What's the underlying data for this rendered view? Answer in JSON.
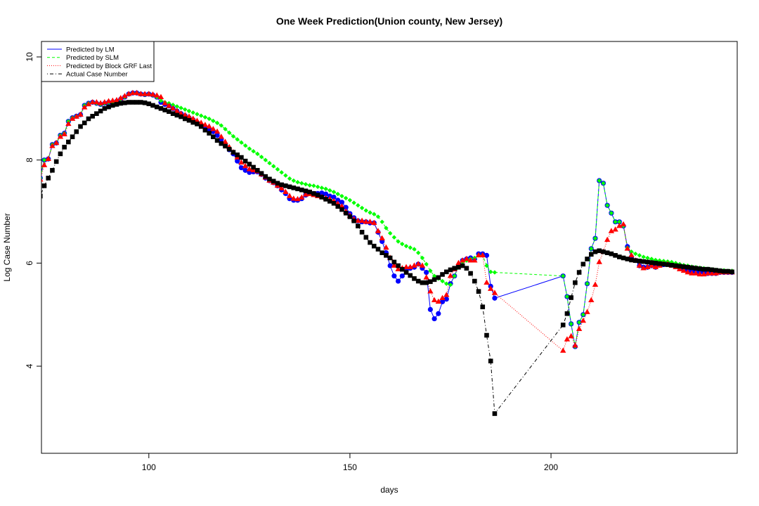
{
  "chart_data": {
    "type": "line",
    "title": "One Week Prediction(Union county, New Jersey)",
    "x_label": "days",
    "y_label": "Log Case Number",
    "xlim": [
      73.3,
      246.3
    ],
    "ylim": [
      2.31,
      10.3
    ],
    "xticks": [
      100,
      150,
      200
    ],
    "yticks": [
      4,
      6,
      8,
      10
    ],
    "legend": "top-left",
    "x": [
      73,
      74,
      75,
      76,
      77,
      78,
      79,
      80,
      81,
      82,
      83,
      84,
      85,
      86,
      87,
      88,
      89,
      90,
      91,
      92,
      93,
      94,
      95,
      96,
      97,
      98,
      99,
      100,
      101,
      102,
      103,
      104,
      105,
      106,
      107,
      108,
      109,
      110,
      111,
      112,
      113,
      114,
      115,
      116,
      117,
      118,
      119,
      120,
      121,
      122,
      123,
      124,
      125,
      126,
      127,
      128,
      129,
      130,
      131,
      132,
      133,
      134,
      135,
      136,
      137,
      138,
      139,
      140,
      141,
      142,
      143,
      144,
      145,
      146,
      147,
      148,
      149,
      150,
      151,
      152,
      153,
      154,
      155,
      156,
      157,
      158,
      159,
      160,
      161,
      162,
      163,
      164,
      165,
      166,
      167,
      168,
      169,
      170,
      171,
      172,
      173,
      174,
      175,
      176,
      177,
      178,
      179,
      180,
      181,
      182,
      183,
      184,
      185,
      186,
      203,
      204,
      205,
      206,
      207,
      208,
      209,
      210,
      211,
      212,
      213,
      214,
      215,
      216,
      217,
      218,
      219,
      220,
      221,
      222,
      223,
      224,
      225,
      226,
      227,
      228,
      229,
      230,
      231,
      232,
      233,
      234,
      235,
      236,
      237,
      238,
      239,
      240,
      241,
      242,
      243,
      244,
      245
    ],
    "series": [
      {
        "name": "Predicted by LM",
        "color": "#0000ff",
        "dash": "solid",
        "marker": "circle",
        "values": [
          7.65,
          8.0,
          8.02,
          8.3,
          8.33,
          8.48,
          8.52,
          8.75,
          8.82,
          8.85,
          8.88,
          9.06,
          9.1,
          9.12,
          9.1,
          9.08,
          9.1,
          9.12,
          9.12,
          9.14,
          9.18,
          9.22,
          9.28,
          9.3,
          9.3,
          9.28,
          9.27,
          9.28,
          9.26,
          9.22,
          9.12,
          9.08,
          9.05,
          9.0,
          8.95,
          8.9,
          8.86,
          8.82,
          8.78,
          8.73,
          8.68,
          8.62,
          8.6,
          8.55,
          8.48,
          8.4,
          8.28,
          8.2,
          8.12,
          7.98,
          7.85,
          7.8,
          7.76,
          7.77,
          7.77,
          7.72,
          7.65,
          7.6,
          7.56,
          7.5,
          7.42,
          7.35,
          7.25,
          7.22,
          7.22,
          7.25,
          7.32,
          7.36,
          7.35,
          7.35,
          7.36,
          7.34,
          7.3,
          7.28,
          7.22,
          7.18,
          7.08,
          6.96,
          6.88,
          6.82,
          6.8,
          6.8,
          6.78,
          6.78,
          6.6,
          6.42,
          6.2,
          5.95,
          5.75,
          5.65,
          5.75,
          5.85,
          5.9,
          5.92,
          5.98,
          5.9,
          5.82,
          5.1,
          4.92,
          5.02,
          5.25,
          5.3,
          5.6,
          5.75,
          5.95,
          6.05,
          6.08,
          6.1,
          6.08,
          6.18,
          6.18,
          6.15,
          5.55,
          5.32,
          5.75,
          5.35,
          4.82,
          4.38,
          4.85,
          5.0,
          5.6,
          6.28,
          6.48,
          7.6,
          7.55,
          7.12,
          6.97,
          6.8,
          6.8,
          6.72,
          6.32,
          6.12,
          6.05,
          5.95,
          5.92,
          5.92,
          5.95,
          5.92,
          5.96,
          5.97,
          5.98,
          5.96,
          5.93,
          5.9,
          5.88,
          5.85,
          5.84,
          5.83,
          5.82,
          5.82,
          5.8,
          5.8,
          5.8,
          5.82,
          5.82,
          5.82,
          5.82
        ]
      },
      {
        "name": "Predicted by SLM",
        "color": "#00ff00",
        "dash": "dashed",
        "marker": "diamond",
        "values": [
          7.65,
          8.0,
          8.02,
          8.3,
          8.33,
          8.48,
          8.52,
          8.75,
          8.82,
          8.85,
          8.88,
          9.06,
          9.1,
          9.12,
          9.1,
          9.08,
          9.1,
          9.12,
          9.12,
          9.14,
          9.18,
          9.22,
          9.28,
          9.3,
          9.3,
          9.28,
          9.27,
          9.28,
          9.26,
          9.22,
          9.15,
          9.12,
          9.1,
          9.07,
          9.04,
          9.01,
          8.98,
          8.95,
          8.92,
          8.89,
          8.86,
          8.83,
          8.8,
          8.76,
          8.72,
          8.67,
          8.6,
          8.53,
          8.46,
          8.4,
          8.34,
          8.28,
          8.22,
          8.17,
          8.12,
          8.06,
          8.0,
          7.94,
          7.88,
          7.82,
          7.76,
          7.7,
          7.64,
          7.6,
          7.57,
          7.55,
          7.53,
          7.51,
          7.5,
          7.48,
          7.46,
          7.44,
          7.41,
          7.38,
          7.34,
          7.3,
          7.26,
          7.22,
          7.17,
          7.12,
          7.07,
          7.02,
          6.98,
          6.95,
          6.9,
          6.8,
          6.68,
          6.58,
          6.5,
          6.42,
          6.37,
          6.33,
          6.3,
          6.27,
          6.2,
          6.1,
          5.98,
          5.85,
          5.75,
          5.7,
          5.65,
          5.6,
          5.58,
          5.75,
          5.92,
          6.02,
          6.05,
          6.08,
          6.1,
          6.15,
          6.15,
          5.95,
          5.83,
          5.82,
          5.75,
          5.35,
          4.82,
          4.38,
          4.85,
          5.0,
          5.6,
          6.28,
          6.48,
          7.6,
          7.55,
          7.12,
          6.97,
          6.8,
          6.8,
          6.72,
          6.3,
          6.22,
          6.18,
          6.15,
          6.12,
          6.1,
          6.08,
          6.06,
          6.05,
          6.04,
          6.03,
          6.02,
          6.0,
          5.98,
          5.96,
          5.95,
          5.93,
          5.92,
          5.91,
          5.9,
          5.89,
          5.88,
          5.87,
          5.86,
          5.86,
          5.85,
          5.85
        ]
      },
      {
        "name": "Predicted by Block GRF Last",
        "color": "#ff0000",
        "dash": "dotted",
        "marker": "triangle",
        "values": [
          7.62,
          7.9,
          8.02,
          8.27,
          8.33,
          8.45,
          8.5,
          8.7,
          8.8,
          8.84,
          8.88,
          9.02,
          9.08,
          9.12,
          9.12,
          9.1,
          9.12,
          9.14,
          9.15,
          9.16,
          9.2,
          9.24,
          9.28,
          9.3,
          9.3,
          9.28,
          9.28,
          9.28,
          9.27,
          9.25,
          9.22,
          9.1,
          9.05,
          9.0,
          8.95,
          8.9,
          8.87,
          8.84,
          8.8,
          8.76,
          8.72,
          8.68,
          8.65,
          8.6,
          8.55,
          8.45,
          8.35,
          8.25,
          8.15,
          8.05,
          7.95,
          7.88,
          7.82,
          7.8,
          7.78,
          7.72,
          7.66,
          7.6,
          7.56,
          7.5,
          7.45,
          7.38,
          7.3,
          7.25,
          7.24,
          7.27,
          7.33,
          7.34,
          7.32,
          7.3,
          7.28,
          7.26,
          7.24,
          7.2,
          7.15,
          7.1,
          7.0,
          6.92,
          6.85,
          6.82,
          6.82,
          6.8,
          6.8,
          6.78,
          6.62,
          6.48,
          6.3,
          6.1,
          5.95,
          5.88,
          5.9,
          5.92,
          5.92,
          5.95,
          5.98,
          5.95,
          5.72,
          5.45,
          5.28,
          5.25,
          5.32,
          5.38,
          5.75,
          5.88,
          6.0,
          6.05,
          6.08,
          6.05,
          6.05,
          6.15,
          6.15,
          5.62,
          5.5,
          5.42,
          4.3,
          4.52,
          4.58,
          4.4,
          4.72,
          4.88,
          5.05,
          5.28,
          5.58,
          6.02,
          6.22,
          6.45,
          6.62,
          6.65,
          6.72,
          6.75,
          6.28,
          6.15,
          6.05,
          5.95,
          5.9,
          5.92,
          5.95,
          5.92,
          5.95,
          5.98,
          5.98,
          5.95,
          5.92,
          5.88,
          5.85,
          5.82,
          5.8,
          5.8,
          5.78,
          5.78,
          5.8,
          5.8,
          5.8,
          5.82,
          5.82,
          5.82,
          5.82
        ]
      },
      {
        "name": "Actual Case Number",
        "color": "#000000",
        "dash": "dotdash",
        "marker": "square",
        "values": [
          7.3,
          7.5,
          7.65,
          7.8,
          7.97,
          8.12,
          8.25,
          8.35,
          8.45,
          8.55,
          8.65,
          8.72,
          8.8,
          8.85,
          8.9,
          8.95,
          9.0,
          9.03,
          9.06,
          9.08,
          9.1,
          9.11,
          9.12,
          9.12,
          9.12,
          9.12,
          9.11,
          9.09,
          9.06,
          9.03,
          9.0,
          8.97,
          8.94,
          8.9,
          8.87,
          8.84,
          8.8,
          8.77,
          8.73,
          8.7,
          8.65,
          8.58,
          8.52,
          8.45,
          8.38,
          8.32,
          8.27,
          8.21,
          8.15,
          8.1,
          8.05,
          7.98,
          7.92,
          7.86,
          7.8,
          7.74,
          7.68,
          7.63,
          7.59,
          7.55,
          7.52,
          7.5,
          7.48,
          7.46,
          7.44,
          7.42,
          7.4,
          7.38,
          7.35,
          7.32,
          7.28,
          7.24,
          7.2,
          7.16,
          7.1,
          7.04,
          6.97,
          6.9,
          6.82,
          6.72,
          6.6,
          6.5,
          6.4,
          6.33,
          6.27,
          6.2,
          6.15,
          6.1,
          6.02,
          5.95,
          5.88,
          5.82,
          5.76,
          5.7,
          5.65,
          5.62,
          5.62,
          5.64,
          5.68,
          5.72,
          5.78,
          5.83,
          5.87,
          5.9,
          5.92,
          5.95,
          5.9,
          5.8,
          5.65,
          5.45,
          5.15,
          4.6,
          4.1,
          3.08,
          4.8,
          5.02,
          5.33,
          5.62,
          5.82,
          5.98,
          6.08,
          6.17,
          6.22,
          6.24,
          6.22,
          6.2,
          6.18,
          6.15,
          6.12,
          6.1,
          6.08,
          6.06,
          6.05,
          6.04,
          6.03,
          6.02,
          6.01,
          6.0,
          5.99,
          5.98,
          5.97,
          5.96,
          5.95,
          5.94,
          5.93,
          5.92,
          5.91,
          5.9,
          5.89,
          5.88,
          5.88,
          5.87,
          5.86,
          5.85,
          5.84,
          5.84,
          5.83
        ]
      }
    ]
  }
}
